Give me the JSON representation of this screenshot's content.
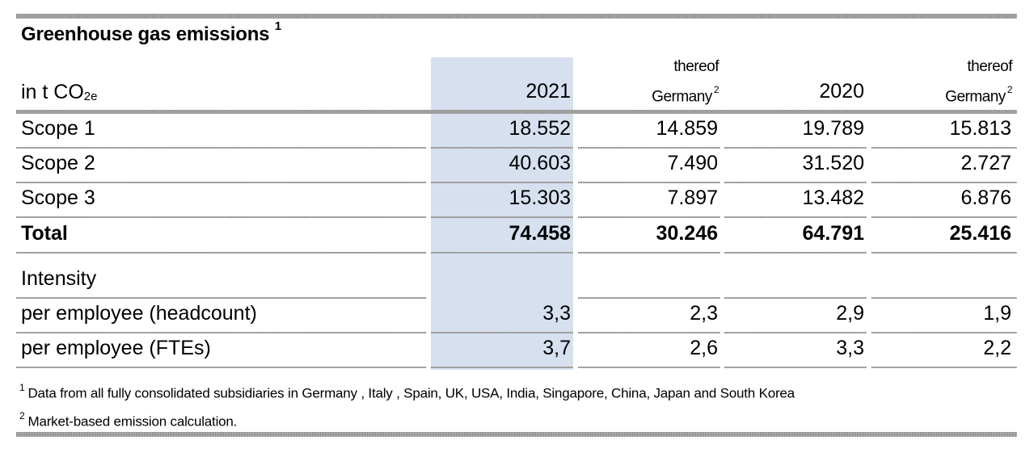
{
  "title": "Greenhouse gas emissions",
  "title_footnote": "1",
  "unit_label": "in t CO",
  "unit_subscript": "2e",
  "columns": [
    {
      "year": "2021"
    },
    {
      "sub_line1": "thereof",
      "sub_line2": "Germany",
      "footnote": "2"
    },
    {
      "year": "2020"
    },
    {
      "sub_line1": "thereof",
      "sub_line2": "Germany",
      "footnote": "2"
    }
  ],
  "rows": [
    {
      "label": "Scope 1",
      "values": [
        "18.552",
        "14.859",
        "19.789",
        "15.813"
      ],
      "bold": false
    },
    {
      "label": "Scope 2",
      "values": [
        "40.603",
        "7.490",
        "31.520",
        "2.727"
      ],
      "bold": false
    },
    {
      "label": "Scope 3",
      "values": [
        "15.303",
        "7.897",
        "13.482",
        "6.876"
      ],
      "bold": false
    },
    {
      "label": "Total",
      "values": [
        "74.458",
        "30.246",
        "64.791",
        "25.416"
      ],
      "bold": true
    },
    {
      "label": "Intensity",
      "values": [
        "",
        "",
        "",
        ""
      ],
      "bold": false
    },
    {
      "label": "per employee (headcount)",
      "values": [
        "3,3",
        "2,3",
        "2,9",
        "1,9"
      ],
      "bold": false
    },
    {
      "label": "per employee (FTEs)",
      "values": [
        "3,7",
        "2,6",
        "3,3",
        "2,2"
      ],
      "bold": false
    }
  ],
  "footnotes": [
    {
      "mark": "1",
      "text": "Data from all fully consolidated subsidiaries in Germany , Italy , Spain, UK, USA, India, Singapore, China, Japan and South Korea"
    },
    {
      "mark": "2",
      "text": "Market-based emission calculation."
    }
  ],
  "colors": {
    "highlight_column": "#d7e0ef",
    "rule": "#8a8a8a"
  }
}
